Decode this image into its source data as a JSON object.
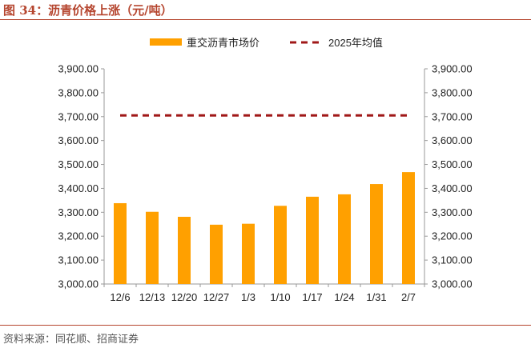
{
  "figure": {
    "title": "图 34：沥青价格上涨（元/吨）",
    "source": "资料来源：同花顺、招商证券"
  },
  "colors": {
    "bar": "#ffa000",
    "avg_line": "#a01818",
    "accent": "#b5452e"
  },
  "chart_data": {
    "type": "bar",
    "categories": [
      "12/6",
      "12/13",
      "12/20",
      "12/27",
      "1/3",
      "1/10",
      "1/17",
      "1/24",
      "1/31",
      "2/7"
    ],
    "series": [
      {
        "name": "重交沥青市场价",
        "type": "bar",
        "values": [
          3338,
          3302,
          3281,
          3248,
          3252,
          3327,
          3365,
          3375,
          3418,
          3468
        ]
      },
      {
        "name": "2025年均值",
        "type": "line",
        "style": "dashed",
        "values": [
          3705,
          3705,
          3705,
          3705,
          3705,
          3705,
          3705,
          3705,
          3705,
          3705
        ]
      }
    ],
    "ylim": [
      3000,
      3900
    ],
    "yticks": [
      "3,000.00",
      "3,100.00",
      "3,200.00",
      "3,300.00",
      "3,400.00",
      "3,500.00",
      "3,600.00",
      "3,700.00",
      "3,800.00",
      "3,900.00"
    ],
    "ytick_values": [
      3000,
      3100,
      3200,
      3300,
      3400,
      3500,
      3600,
      3700,
      3800,
      3900
    ],
    "secondary_y": true,
    "legend_position": "top",
    "grid": false
  }
}
